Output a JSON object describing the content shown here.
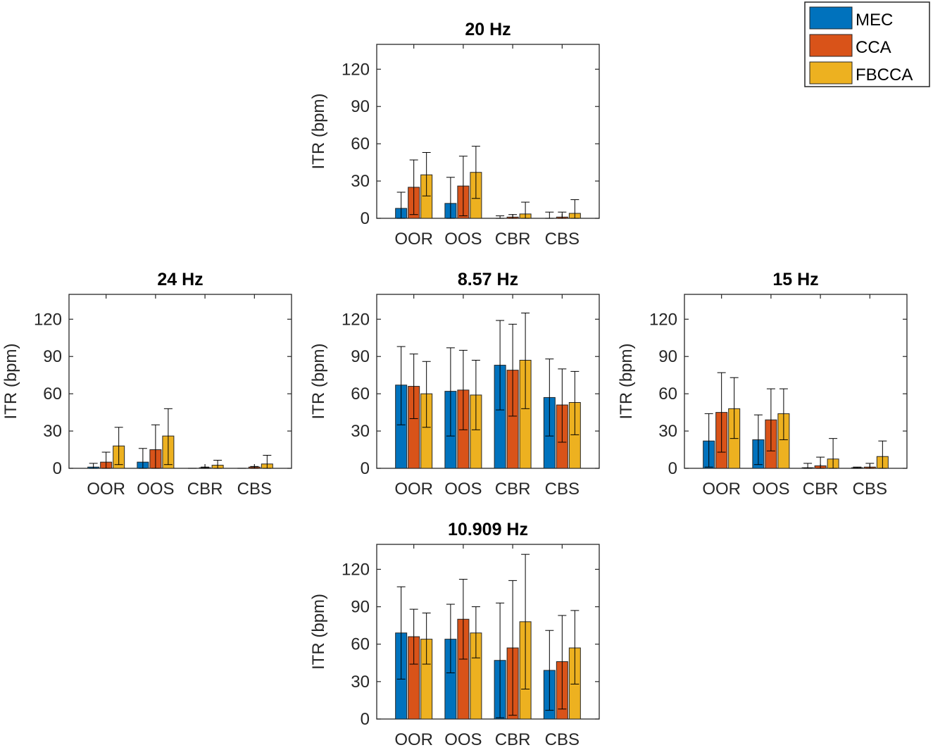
{
  "colors": {
    "MEC": "#0072BD",
    "CCA": "#D95319",
    "FBCCA": "#EDB120",
    "axis": "#262626"
  },
  "legend": {
    "entries": [
      "MEC",
      "CCA",
      "FBCCA"
    ],
    "location": "top-right"
  },
  "chart_data": [
    {
      "type": "bar",
      "title": "20 Hz",
      "ylabel": "ITR (bpm)",
      "ylim": [
        0,
        140
      ],
      "yticks": [
        0,
        30,
        60,
        90,
        120
      ],
      "categories": [
        "OOR",
        "OOS",
        "CBR",
        "CBS"
      ],
      "series": [
        {
          "name": "MEC",
          "values": [
            8,
            12,
            0,
            0
          ],
          "err_low": [
            0,
            0,
            0,
            0
          ],
          "err_high": [
            21,
            33,
            2,
            5
          ]
        },
        {
          "name": "CCA",
          "values": [
            25,
            26,
            1,
            1
          ],
          "err_low": [
            3,
            2,
            0,
            0
          ],
          "err_high": [
            47,
            50,
            3,
            5
          ]
        },
        {
          "name": "FBCCA",
          "values": [
            35,
            37,
            3.5,
            4
          ],
          "err_low": [
            18,
            16,
            0,
            0
          ],
          "err_high": [
            53,
            58,
            13,
            15
          ]
        }
      ]
    },
    {
      "type": "bar",
      "title": "24 Hz",
      "ylabel": "ITR (bpm)",
      "ylim": [
        0,
        140
      ],
      "yticks": [
        0,
        30,
        60,
        90,
        120
      ],
      "categories": [
        "OOR",
        "OOS",
        "CBR",
        "CBS"
      ],
      "series": [
        {
          "name": "MEC",
          "values": [
            1,
            5,
            0,
            0
          ],
          "err_low": [
            0,
            0,
            0,
            0
          ],
          "err_high": [
            4,
            16,
            0,
            0
          ]
        },
        {
          "name": "CCA",
          "values": [
            5,
            15,
            0.5,
            1
          ],
          "err_low": [
            0,
            0,
            0,
            0
          ],
          "err_high": [
            13,
            35,
            1,
            1.5
          ]
        },
        {
          "name": "FBCCA",
          "values": [
            18,
            26,
            2.5,
            3.5
          ],
          "err_low": [
            3,
            3,
            0,
            0
          ],
          "err_high": [
            33,
            48,
            6.5,
            10.5
          ]
        }
      ]
    },
    {
      "type": "bar",
      "title": "8.57 Hz",
      "ylabel": "ITR (bpm)",
      "ylim": [
        0,
        140
      ],
      "yticks": [
        0,
        30,
        60,
        90,
        120
      ],
      "categories": [
        "OOR",
        "OOS",
        "CBR",
        "CBS"
      ],
      "series": [
        {
          "name": "MEC",
          "values": [
            67,
            62,
            83,
            57
          ],
          "err_low": [
            35,
            26,
            47,
            26
          ],
          "err_high": [
            98,
            97,
            119,
            88
          ]
        },
        {
          "name": "CCA",
          "values": [
            66,
            63,
            79,
            51
          ],
          "err_low": [
            40,
            31,
            42,
            21
          ],
          "err_high": [
            92,
            95,
            116,
            80
          ]
        },
        {
          "name": "FBCCA",
          "values": [
            60,
            59,
            87,
            53
          ],
          "err_low": [
            33,
            31,
            48,
            27
          ],
          "err_high": [
            86,
            87,
            125,
            78
          ]
        }
      ]
    },
    {
      "type": "bar",
      "title": "15 Hz",
      "ylabel": "ITR (bpm)",
      "ylim": [
        0,
        140
      ],
      "yticks": [
        0,
        30,
        60,
        90,
        120
      ],
      "categories": [
        "OOR",
        "OOS",
        "CBR",
        "CBS"
      ],
      "series": [
        {
          "name": "MEC",
          "values": [
            22,
            23,
            0.5,
            0.5
          ],
          "err_low": [
            1,
            3,
            0,
            0
          ],
          "err_high": [
            44,
            43,
            4,
            1
          ]
        },
        {
          "name": "CCA",
          "values": [
            45,
            39,
            2,
            1
          ],
          "err_low": [
            13,
            14,
            0,
            0
          ],
          "err_high": [
            77,
            64,
            9,
            4
          ]
        },
        {
          "name": "FBCCA",
          "values": [
            48,
            44,
            7.5,
            9.5
          ],
          "err_low": [
            24,
            23,
            0,
            0
          ],
          "err_high": [
            73,
            64,
            24,
            22
          ]
        }
      ]
    },
    {
      "type": "bar",
      "title": "10.909 Hz",
      "ylabel": "ITR (bpm)",
      "ylim": [
        0,
        140
      ],
      "yticks": [
        0,
        30,
        60,
        90,
        120
      ],
      "categories": [
        "OOR",
        "OOS",
        "CBR",
        "CBS"
      ],
      "series": [
        {
          "name": "MEC",
          "values": [
            69,
            64,
            47,
            39
          ],
          "err_low": [
            32,
            37,
            1,
            7
          ],
          "err_high": [
            106,
            92,
            93,
            71
          ]
        },
        {
          "name": "CCA",
          "values": [
            66,
            80,
            57,
            46
          ],
          "err_low": [
            44,
            48,
            3,
            8
          ],
          "err_high": [
            88,
            112,
            111,
            83
          ]
        },
        {
          "name": "FBCCA",
          "values": [
            64,
            69,
            78,
            57
          ],
          "err_low": [
            44,
            49,
            24,
            28
          ],
          "err_high": [
            85,
            90,
            132,
            87
          ]
        }
      ]
    }
  ]
}
